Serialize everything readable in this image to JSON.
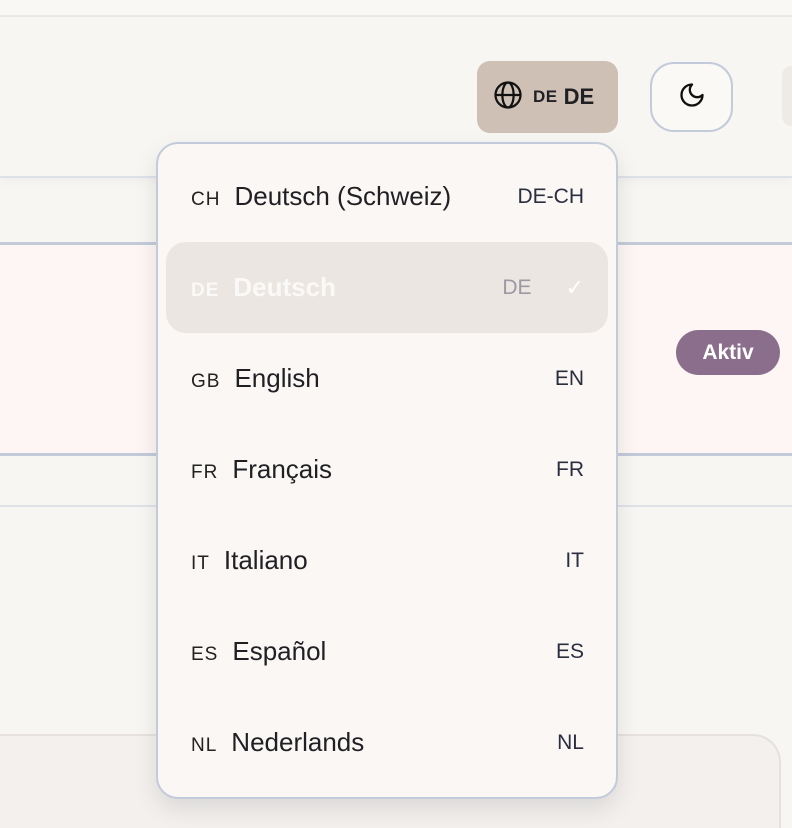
{
  "header": {
    "language_button": {
      "flag": "DE",
      "code": "DE",
      "icon": "globe-icon"
    },
    "theme_button": {
      "icon": "moon-icon"
    }
  },
  "section": {
    "status_badge": "Aktiv",
    "badge_color": "#8b6e8c"
  },
  "language_menu": {
    "items": [
      {
        "flag": "CH",
        "label": "Deutsch (Schweiz)",
        "code": "DE-CH",
        "selected": false
      },
      {
        "flag": "DE",
        "label": "Deutsch",
        "code": "DE",
        "selected": true,
        "check": "✓"
      },
      {
        "flag": "GB",
        "label": "English",
        "code": "EN",
        "selected": false
      },
      {
        "flag": "FR",
        "label": "Français",
        "code": "FR",
        "selected": false
      },
      {
        "flag": "IT",
        "label": "Italiano",
        "code": "IT",
        "selected": false
      },
      {
        "flag": "ES",
        "label": "Español",
        "code": "ES",
        "selected": false
      },
      {
        "flag": "NL",
        "label": "Nederlands",
        "code": "NL",
        "selected": false
      }
    ]
  }
}
